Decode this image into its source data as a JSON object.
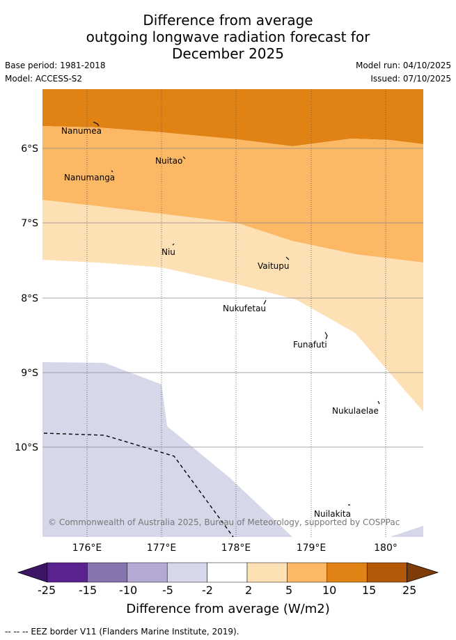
{
  "title": {
    "line1": "Difference from average",
    "line2": "outgoing longwave radiation forecast for",
    "line3": "December 2025"
  },
  "meta": {
    "base_period": "Base period: 1981-2018",
    "model": "Model: ACCESS-S2",
    "model_run": "Model run: 04/10/2025",
    "issued": "Issued: 07/10/2025"
  },
  "axes": {
    "y_ticks": [
      "6°S",
      "7°S",
      "8°S",
      "9°S",
      "10°S"
    ],
    "x_ticks": [
      "176°E",
      "177°E",
      "178°E",
      "179°E",
      "180°"
    ]
  },
  "places": [
    "Nanumea",
    "Nuitao",
    "Nanumanga",
    "Niu",
    "Vaitupu",
    "Nukufetau",
    "Funafuti",
    "Nukulaelae",
    "Nuilakita"
  ],
  "copyright": "© Commonwealth of Australia 2025, Bureau of Meteorology, supported by COSPPac",
  "colorbar": {
    "labels": [
      "-25",
      "-15",
      "-10",
      "-5",
      "-2",
      "2",
      "5",
      "10",
      "15",
      "25"
    ],
    "colors": [
      "#3d1566",
      "#5a2390",
      "#8574ae",
      "#b3a9d2",
      "#d7d7ea",
      "#ffffff",
      "#fde0b4",
      "#fcb865",
      "#e08214",
      "#b35806",
      "#7f3b08"
    ],
    "title": "Difference from average (W/m2)"
  },
  "footer": "--  --  -- EEZ border V11 (Flanders Marine Institute, 2019)."
}
